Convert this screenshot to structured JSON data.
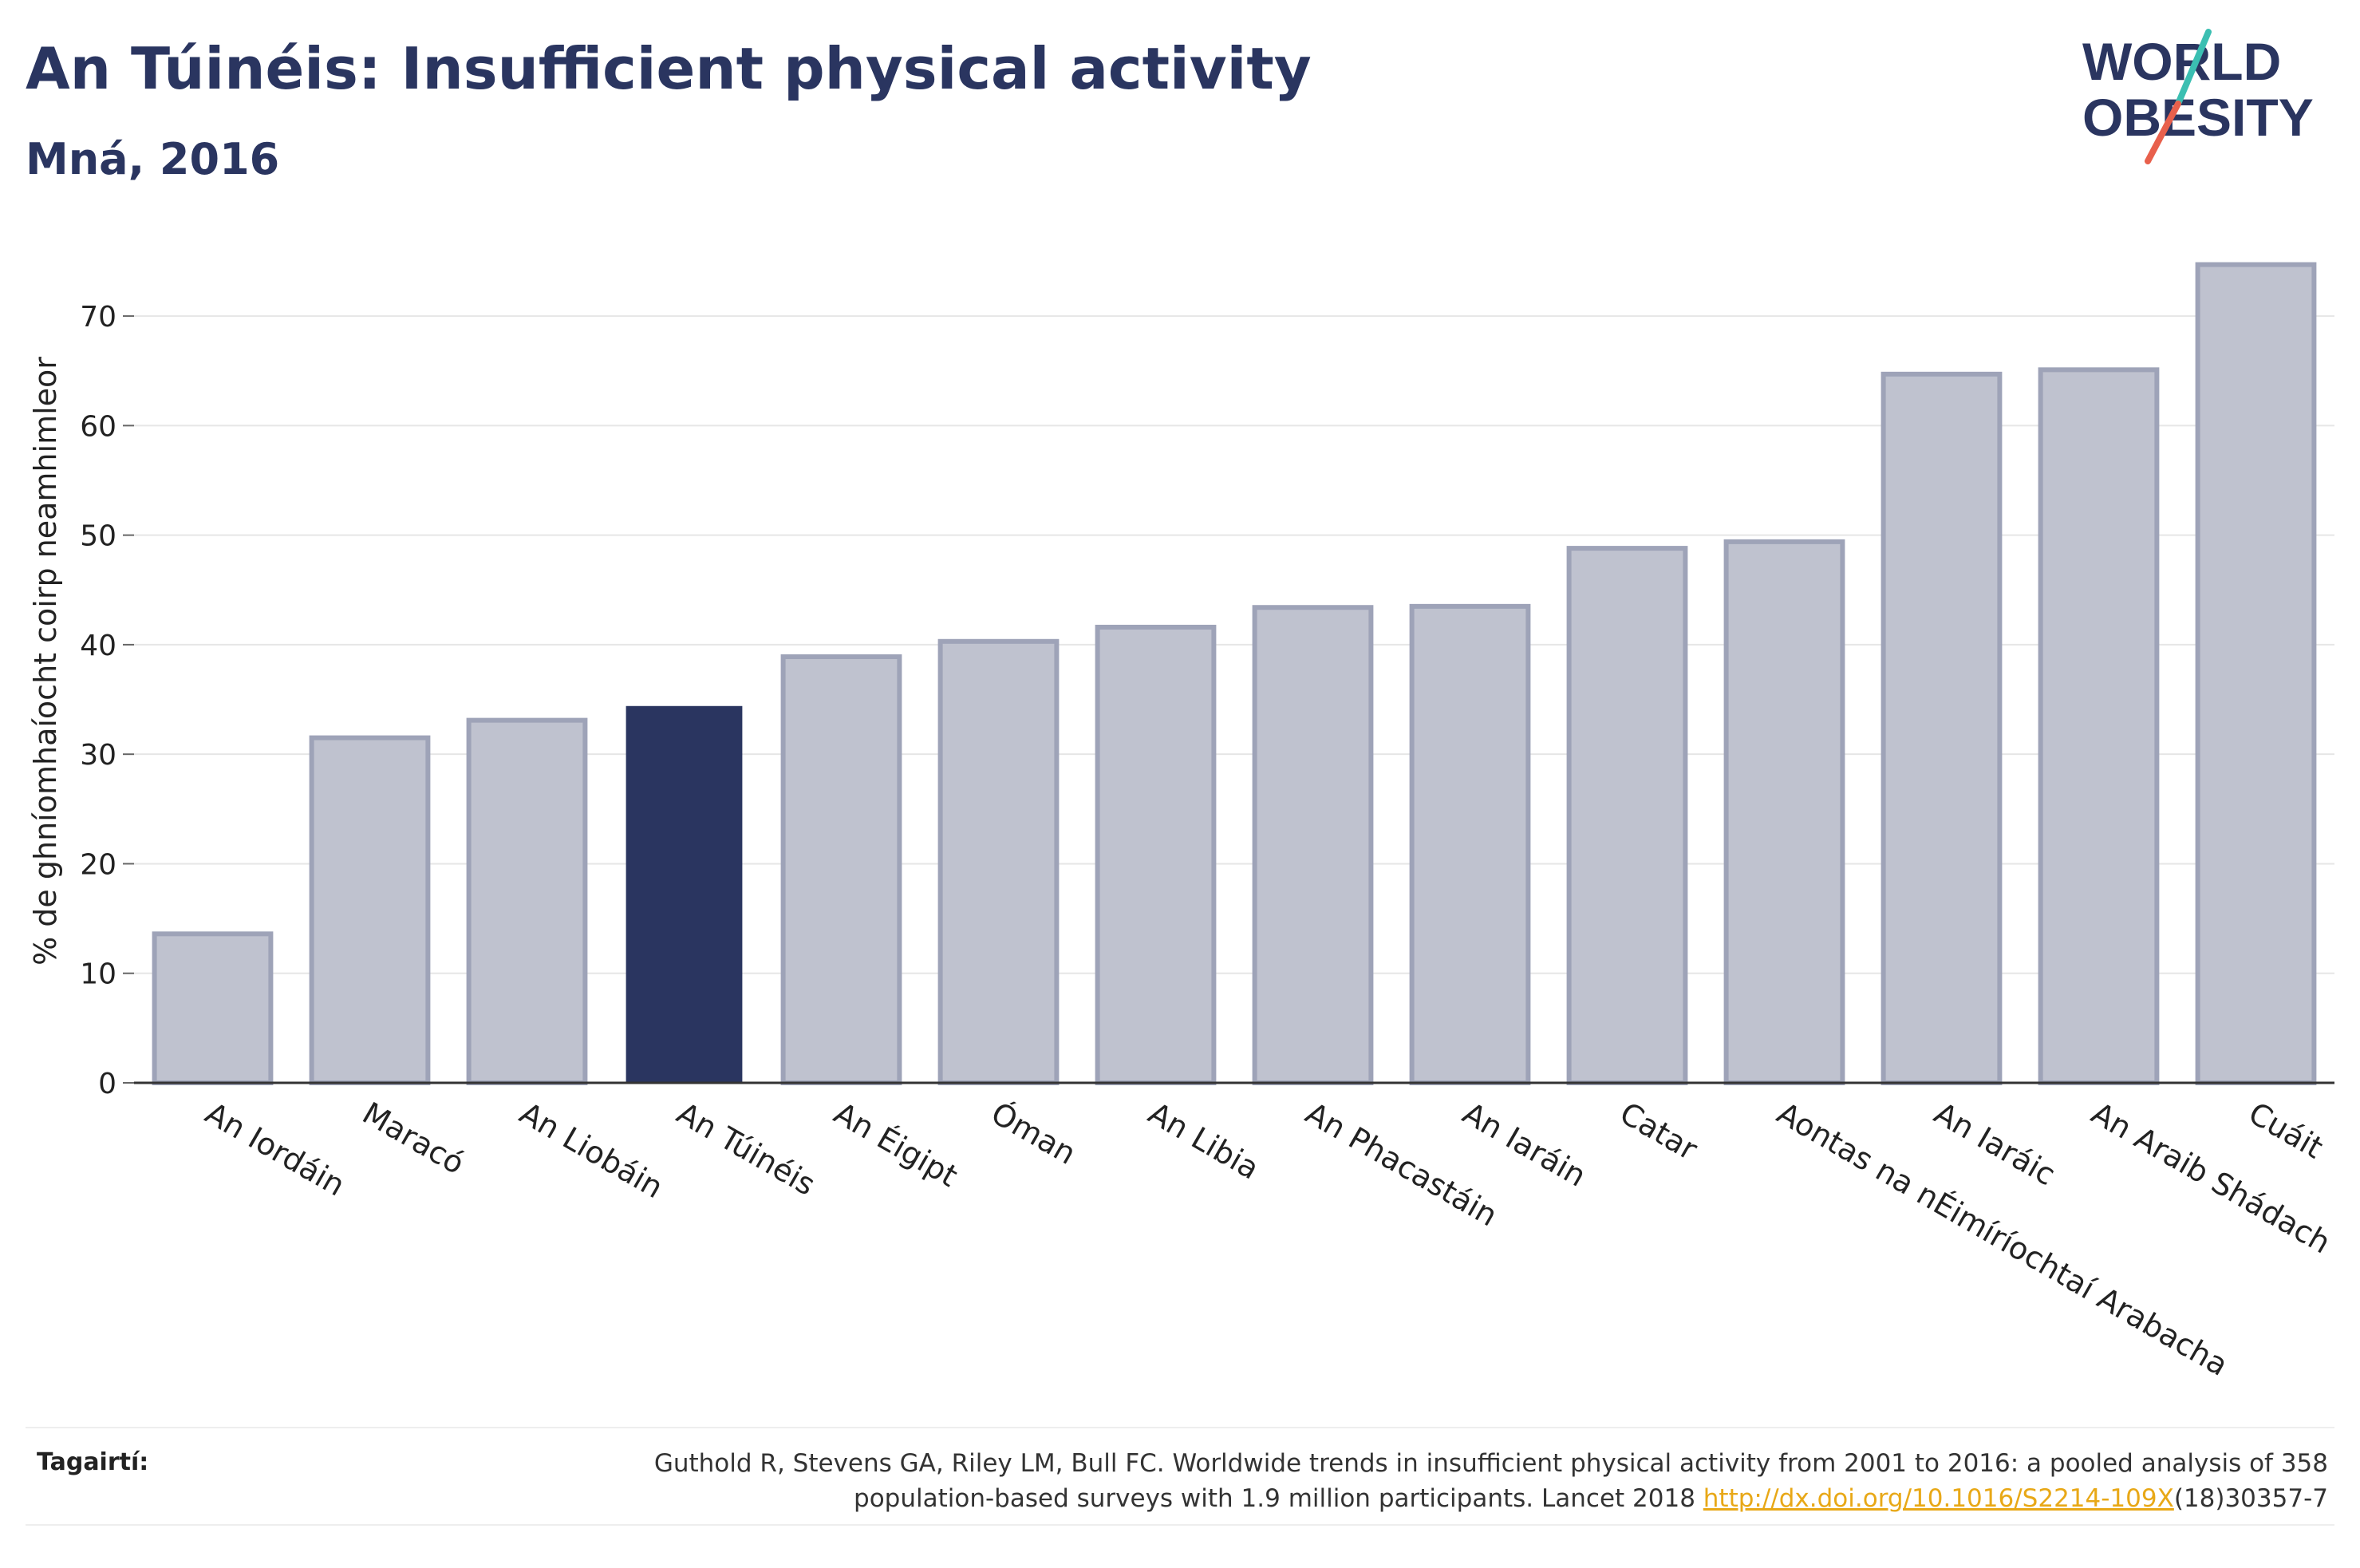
{
  "header": {
    "title": "An Túinéis: Insufficient physical activity",
    "subtitle": "Mná, 2016"
  },
  "logo": {
    "line1": "WORLD",
    "line2": "OBESITY",
    "colors": {
      "text": "#2a3560",
      "slash_teal": "#3bbfb2",
      "slash_coral": "#e8604c"
    }
  },
  "chart_data": {
    "type": "bar",
    "title": "An Túinéis: Insufficient physical activity",
    "subtitle": "Mná, 2016",
    "ylabel": "% de ghníomhaíocht coirp neamhimleor",
    "xlabel": "",
    "ylim": [
      0,
      77
    ],
    "yticks": [
      0,
      10,
      20,
      30,
      40,
      50,
      60,
      70
    ],
    "grid": true,
    "categories": [
      "An Iordáin",
      "Maracó",
      "An Liobáin",
      "An Túinéis",
      "An Éigipt",
      "Óman",
      "An Libia",
      "An Phacastáin",
      "An Iaráin",
      "Catar",
      "Aontas na nÉimíríochtaí Arabacha",
      "An Iaráic",
      "An Araib Shádach",
      "Cuáit"
    ],
    "values": [
      13.6,
      31.5,
      33.1,
      34.4,
      38.9,
      40.3,
      41.6,
      43.4,
      43.5,
      48.8,
      49.4,
      64.7,
      65.1,
      74.7
    ],
    "highlight": "An Túinéis",
    "colors": {
      "bar": "#bfc2cf",
      "bar_border": "#9ea3b8",
      "highlight": "#2a3560",
      "axis": "#333333",
      "grid": "#e6e6e6"
    }
  },
  "references": {
    "label": "Tagairtí:",
    "text_line1": "Guthold R, Stevens GA, Riley LM, Bull FC. Worldwide trends in insufficient physical activity from 2001 to 2016: a pooled analysis of 358",
    "text_line2_before": "population-based surveys with 1.9 million participants. Lancet 2018 ",
    "link_text": "http://dx.doi.org/10.1016/S2214-109X",
    "text_line2_after": "(18)30357-7"
  }
}
